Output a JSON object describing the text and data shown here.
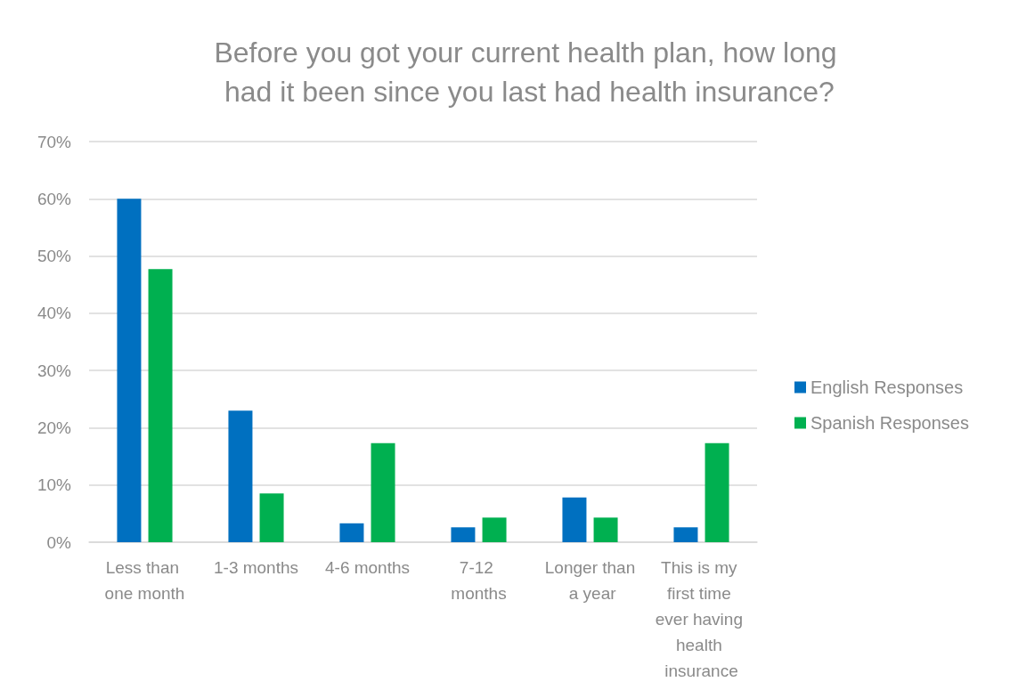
{
  "chart_data": {
    "type": "bar",
    "title": "Before you got your current health plan, how long had it been since you last had health insurance?",
    "categories": [
      "Less than one month",
      "1-3 months",
      "4-6 months",
      "7-12 months",
      "Longer than a year",
      "This is my first time ever having health insurance"
    ],
    "series": [
      {
        "name": "English Responses",
        "color": "#0070c0",
        "values": [
          60,
          23,
          3.3,
          2.6,
          7.8,
          2.6
        ]
      },
      {
        "name": "Spanish Responses",
        "color": "#00b050",
        "values": [
          47.7,
          8.5,
          17.3,
          4.3,
          4.3,
          17.3
        ]
      }
    ],
    "ylim": [
      0,
      70
    ],
    "yticks": [
      {
        "value": 0,
        "label": "0%"
      },
      {
        "value": 10,
        "label": "10%"
      },
      {
        "value": 20,
        "label": "20%"
      },
      {
        "value": 30,
        "label": "30%"
      },
      {
        "value": 40,
        "label": "40%"
      },
      {
        "value": 50,
        "label": "50%"
      },
      {
        "value": 60,
        "label": "60%"
      },
      {
        "value": 70,
        "label": "70%"
      }
    ],
    "grid": "y",
    "legend": "right"
  }
}
